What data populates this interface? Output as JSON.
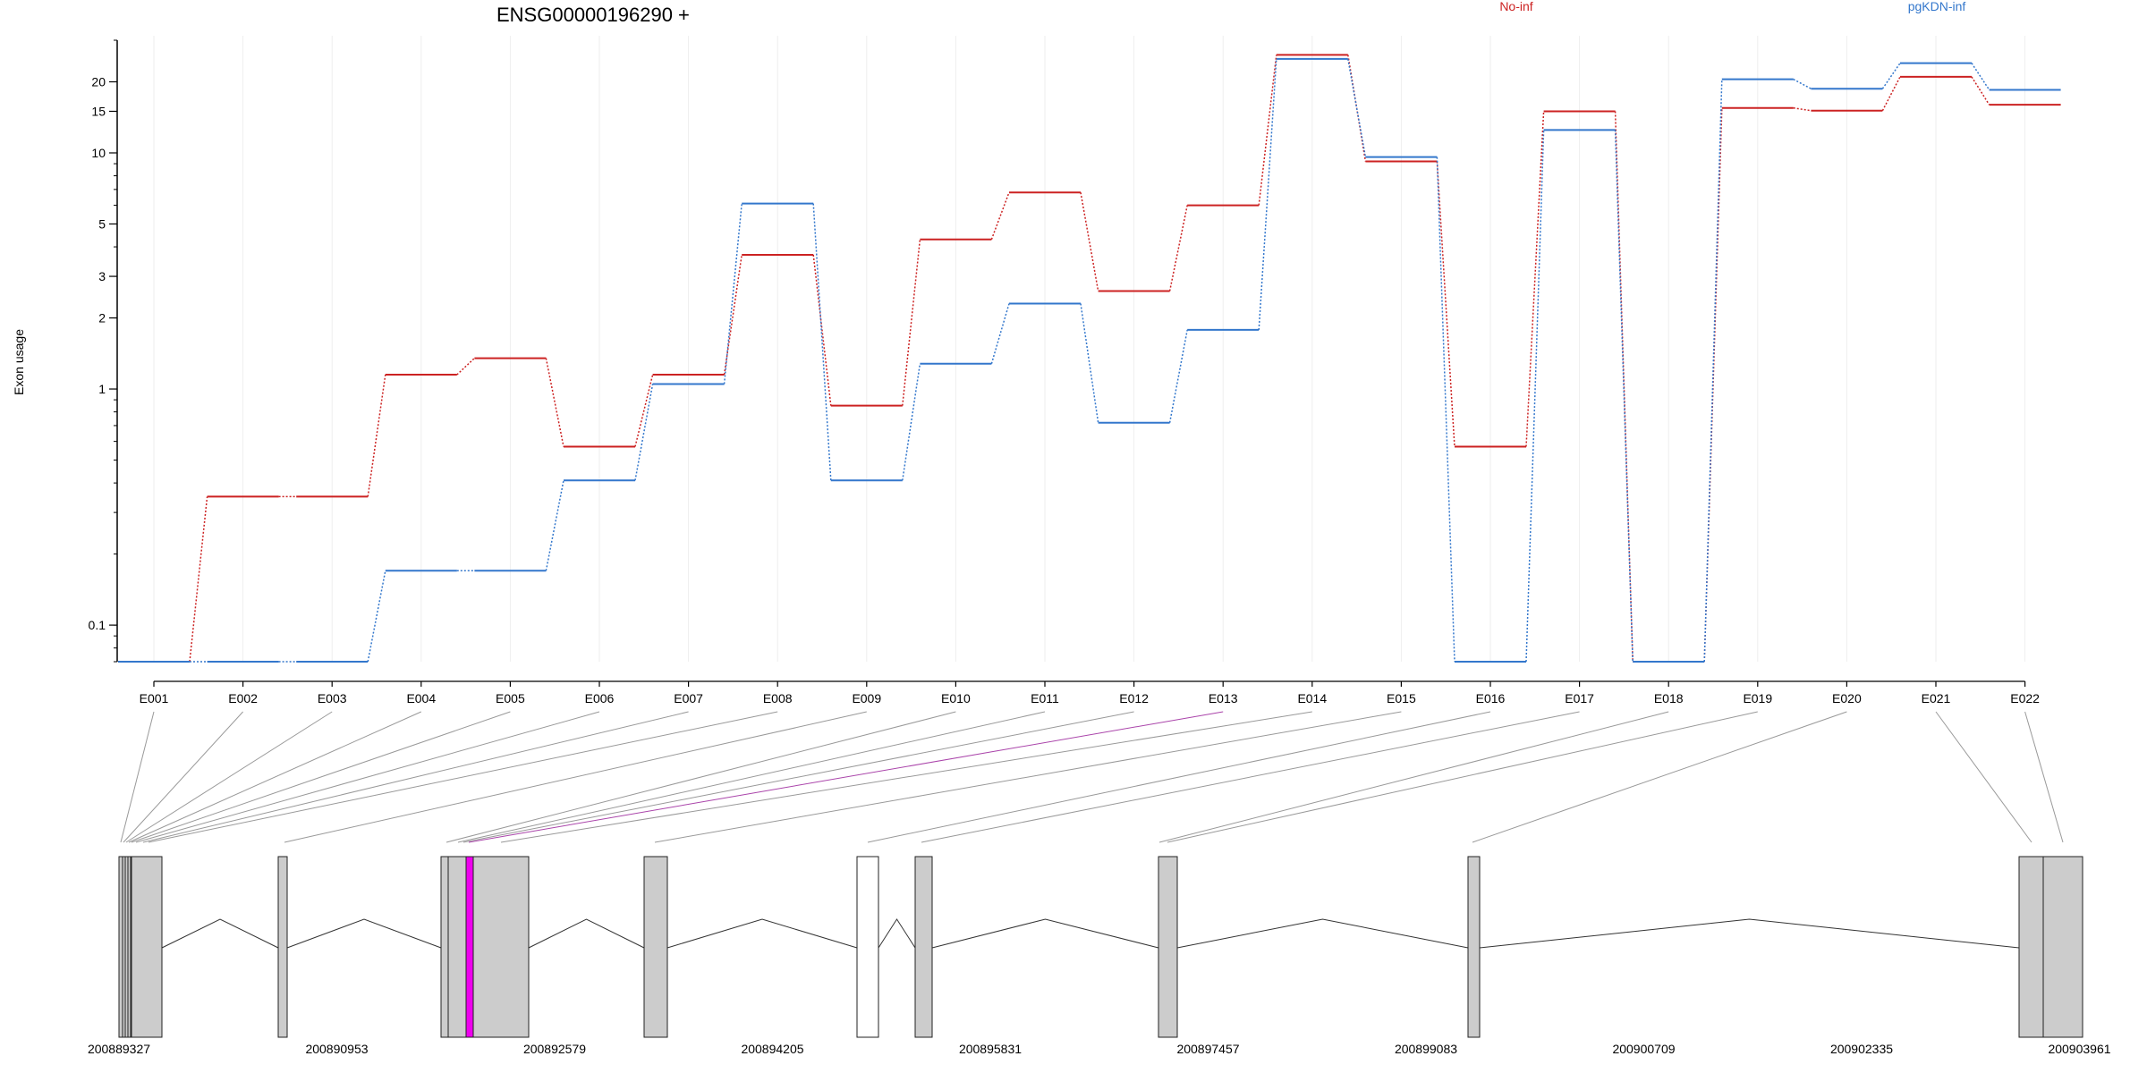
{
  "chart_data": {
    "type": "line",
    "title": "ENSG00000196290 +",
    "ylabel": "Exon usage",
    "yscale": "log",
    "ylim": [
      0.07,
      30
    ],
    "yticks": [
      0.1,
      1,
      2,
      3,
      5,
      10,
      15,
      20
    ],
    "grid": "vertical",
    "legend_placement": "top",
    "categories": [
      "E001",
      "E002",
      "E003",
      "E004",
      "E005",
      "E006",
      "E007",
      "E008",
      "E009",
      "E010",
      "E011",
      "E012",
      "E013",
      "E014",
      "E015",
      "E016",
      "E017",
      "E018",
      "E019",
      "E020",
      "E021",
      "E022"
    ],
    "series": [
      {
        "name": "No-inf",
        "color": "#cc2222",
        "values": [
          0.07,
          0.35,
          0.35,
          1.15,
          1.35,
          0.57,
          1.15,
          3.7,
          0.85,
          4.3,
          6.8,
          2.6,
          6.0,
          26.0,
          9.2,
          0.57,
          15.0,
          0.07,
          15.5,
          15.1,
          21.0,
          16.0
        ]
      },
      {
        "name": "pgKDN-inf",
        "color": "#3377cc",
        "values": [
          0.07,
          0.07,
          0.07,
          0.17,
          0.17,
          0.41,
          1.05,
          6.1,
          0.41,
          1.28,
          2.3,
          0.72,
          1.78,
          25.0,
          9.6,
          0.07,
          12.5,
          0.07,
          20.5,
          18.7,
          24.0,
          18.5
        ]
      }
    ],
    "genome_axis": {
      "ticks": [
        "200889327",
        "200890953",
        "200892579",
        "200894205",
        "200895831",
        "200897457",
        "200899083",
        "200900709",
        "200902335",
        "200903961"
      ]
    }
  }
}
